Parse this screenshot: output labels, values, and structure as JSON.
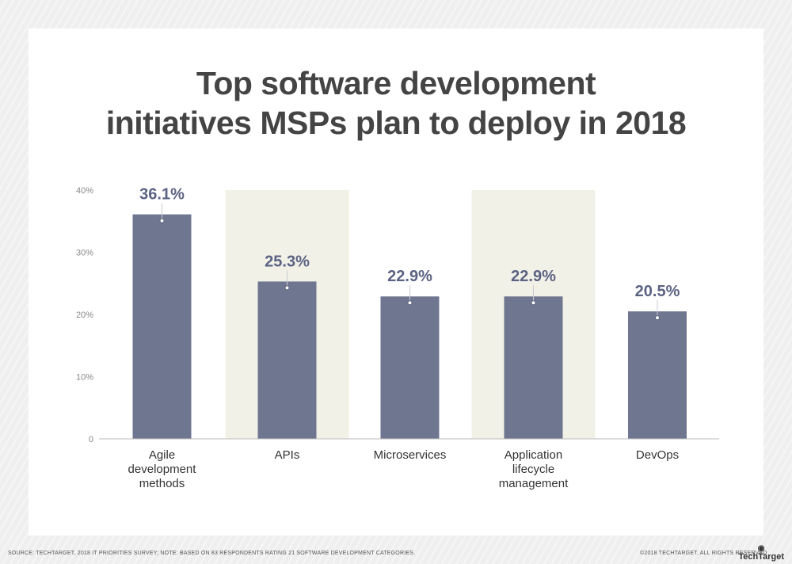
{
  "chart_data": {
    "type": "bar",
    "title": "Top software development initiatives MSPs plan to deploy in 2018",
    "categories": [
      "Agile development methods",
      "APIs",
      "Microservices",
      "Application lifecycle management",
      "DevOps"
    ],
    "category_lines": [
      [
        "Agile",
        "development",
        "methods"
      ],
      [
        "APIs"
      ],
      [
        "Microservices"
      ],
      [
        "Application",
        "lifecycle",
        "management"
      ],
      [
        "DevOps"
      ]
    ],
    "values": [
      36.1,
      25.3,
      22.9,
      22.9,
      20.5
    ],
    "data_labels": [
      "36.1%",
      "25.3%",
      "22.9%",
      "22.9%",
      "20.5%"
    ],
    "ylim": [
      0,
      40
    ],
    "yticks": [
      0,
      10,
      20,
      30,
      40
    ],
    "ytick_labels": [
      "0",
      "10%",
      "20%",
      "30%",
      "40%"
    ],
    "grid": false,
    "colors": {
      "bar": "#6f7690",
      "label": "#5b6283",
      "shade": "#f2f1e8"
    }
  },
  "title_lines": [
    "Top software development",
    "initiatives MSPs plan to deploy in 2018"
  ],
  "footer": {
    "source": "SOURCE:  TECHTARGET, 2018 IT PRIORITIES SURVEY; NOTE: BASED ON 83 RESPONDENTS RATING 21 SOFTWARE DEVELOPMENT CATEGORIES.",
    "copyright": "©2018 TECHTARGET. ALL RIGHTS RESERVED",
    "logo": "TechTarget"
  }
}
